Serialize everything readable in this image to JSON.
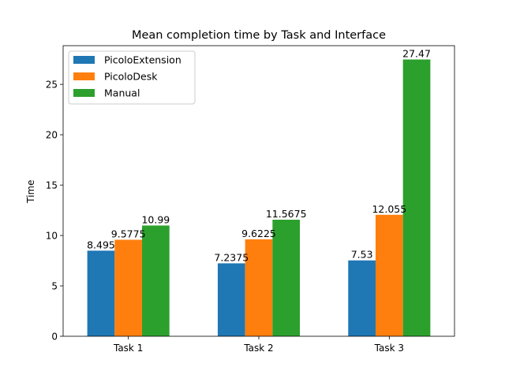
{
  "chart_data": {
    "type": "bar",
    "title": "Mean completion time by Task and Interface",
    "xlabel": "",
    "ylabel": "Time",
    "categories": [
      "Task 1",
      "Task 2",
      "Task 3"
    ],
    "series": [
      {
        "name": "PicoloExtension",
        "values": [
          8.495,
          7.2375,
          7.53
        ],
        "labels": [
          "8.495",
          "7.2375",
          "7.53"
        ],
        "color": "#1f77b4"
      },
      {
        "name": "PicoloDesk",
        "values": [
          9.5775,
          9.6225,
          12.055
        ],
        "labels": [
          "9.5775",
          "9.6225",
          "12.055"
        ],
        "color": "#ff7f0e"
      },
      {
        "name": "Manual",
        "values": [
          10.99,
          11.5675,
          27.47
        ],
        "labels": [
          "10.99",
          "11.5675",
          "27.47"
        ],
        "color": "#2ca02c"
      }
    ],
    "ylim": [
      0,
      28.84
    ],
    "yticks": [
      "0",
      "5",
      "10",
      "15",
      "20",
      "25"
    ],
    "grid": false,
    "legend": "top-left"
  }
}
